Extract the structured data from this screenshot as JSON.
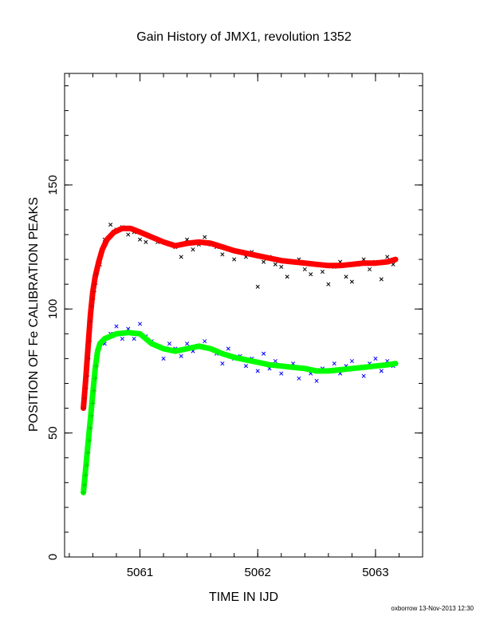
{
  "chart_data": {
    "type": "scatter",
    "title": "Gain History of JMX1, revolution 1352",
    "xlabel": "TIME IN IJD",
    "ylabel": "POSITION OF Fe CALIBRATION PEAKS",
    "footer": "oxborrow 13-Nov-2013 12:30",
    "xlim": [
      5060.36,
      5063.4
    ],
    "ylim": [
      0,
      195
    ],
    "x_ticks": [
      5061,
      5062,
      5063
    ],
    "y_ticks": [
      0,
      50,
      100,
      150
    ],
    "grid": false,
    "legend": "none",
    "series": [
      {
        "marker": "x",
        "color": "#000000",
        "points": [
          [
            5060.66,
            118
          ],
          [
            5060.7,
            128
          ],
          [
            5060.75,
            134
          ],
          [
            5060.8,
            132
          ],
          [
            5060.85,
            133
          ],
          [
            5060.9,
            130
          ],
          [
            5060.95,
            131
          ],
          [
            5061.0,
            128
          ],
          [
            5061.05,
            127
          ],
          [
            5061.1,
            129
          ],
          [
            5061.15,
            127
          ],
          [
            5061.2,
            127
          ],
          [
            5061.25,
            126
          ],
          [
            5061.3,
            125
          ],
          [
            5061.35,
            121
          ],
          [
            5061.4,
            128
          ],
          [
            5061.45,
            124
          ],
          [
            5061.5,
            126
          ],
          [
            5061.55,
            129
          ],
          [
            5061.6,
            126
          ],
          [
            5061.65,
            125
          ],
          [
            5061.7,
            122
          ],
          [
            5061.75,
            124
          ],
          [
            5061.8,
            120
          ],
          [
            5061.85,
            123
          ],
          [
            5061.9,
            121
          ],
          [
            5061.95,
            123
          ],
          [
            5062.0,
            109
          ],
          [
            5062.05,
            119
          ],
          [
            5062.1,
            121
          ],
          [
            5062.15,
            118
          ],
          [
            5062.2,
            117
          ],
          [
            5062.25,
            113
          ],
          [
            5062.3,
            119
          ],
          [
            5062.35,
            120
          ],
          [
            5062.4,
            116
          ],
          [
            5062.45,
            114
          ],
          [
            5062.5,
            118
          ],
          [
            5062.55,
            115
          ],
          [
            5062.6,
            110
          ],
          [
            5062.65,
            117
          ],
          [
            5062.7,
            119
          ],
          [
            5062.75,
            113
          ],
          [
            5062.8,
            111
          ],
          [
            5062.85,
            118
          ],
          [
            5062.9,
            120
          ],
          [
            5062.95,
            116
          ],
          [
            5063.0,
            119
          ],
          [
            5063.05,
            112
          ],
          [
            5063.1,
            121
          ],
          [
            5063.15,
            118
          ]
        ]
      },
      {
        "marker": "x",
        "color": "#0000ff",
        "points": [
          [
            5060.7,
            86
          ],
          [
            5060.75,
            90
          ],
          [
            5060.8,
            93
          ],
          [
            5060.85,
            88
          ],
          [
            5060.9,
            92
          ],
          [
            5060.95,
            88
          ],
          [
            5061.0,
            94
          ],
          [
            5061.05,
            89
          ],
          [
            5061.1,
            87
          ],
          [
            5061.15,
            85
          ],
          [
            5061.2,
            80
          ],
          [
            5061.25,
            86
          ],
          [
            5061.3,
            84
          ],
          [
            5061.35,
            81
          ],
          [
            5061.4,
            86
          ],
          [
            5061.45,
            83
          ],
          [
            5061.5,
            85
          ],
          [
            5061.55,
            87
          ],
          [
            5061.6,
            84
          ],
          [
            5061.65,
            82
          ],
          [
            5061.7,
            78
          ],
          [
            5061.75,
            84
          ],
          [
            5061.8,
            80
          ],
          [
            5061.85,
            81
          ],
          [
            5061.9,
            77
          ],
          [
            5061.95,
            80
          ],
          [
            5062.0,
            75
          ],
          [
            5062.05,
            82
          ],
          [
            5062.1,
            76
          ],
          [
            5062.15,
            79
          ],
          [
            5062.2,
            74
          ],
          [
            5062.25,
            77
          ],
          [
            5062.3,
            78
          ],
          [
            5062.35,
            72
          ],
          [
            5062.4,
            76
          ],
          [
            5062.45,
            74
          ],
          [
            5062.5,
            71
          ],
          [
            5062.55,
            76
          ],
          [
            5062.6,
            75
          ],
          [
            5062.65,
            78
          ],
          [
            5062.7,
            74
          ],
          [
            5062.75,
            77
          ],
          [
            5062.8,
            79
          ],
          [
            5062.85,
            76
          ],
          [
            5062.9,
            73
          ],
          [
            5062.95,
            78
          ],
          [
            5063.0,
            80
          ],
          [
            5063.05,
            75
          ],
          [
            5063.1,
            79
          ],
          [
            5063.15,
            77
          ]
        ]
      },
      {
        "marker": "line",
        "color": "#ff0000",
        "points": [
          [
            5060.52,
            60
          ],
          [
            5060.54,
            72
          ],
          [
            5060.56,
            85
          ],
          [
            5060.58,
            98
          ],
          [
            5060.6,
            107
          ],
          [
            5060.62,
            113
          ],
          [
            5060.65,
            119
          ],
          [
            5060.68,
            124
          ],
          [
            5060.72,
            128
          ],
          [
            5060.78,
            131
          ],
          [
            5060.85,
            132.5
          ],
          [
            5060.92,
            132.5
          ],
          [
            5061.0,
            131
          ],
          [
            5061.1,
            129
          ],
          [
            5061.2,
            127
          ],
          [
            5061.3,
            125.5
          ],
          [
            5061.4,
            126.5
          ],
          [
            5061.5,
            127
          ],
          [
            5061.6,
            126.5
          ],
          [
            5061.7,
            125
          ],
          [
            5061.8,
            123.5
          ],
          [
            5061.9,
            122.5
          ],
          [
            5062.0,
            121.5
          ],
          [
            5062.1,
            120.5
          ],
          [
            5062.2,
            119.5
          ],
          [
            5062.3,
            119
          ],
          [
            5062.4,
            118.5
          ],
          [
            5062.5,
            118
          ],
          [
            5062.6,
            117.5
          ],
          [
            5062.7,
            117.5
          ],
          [
            5062.8,
            118
          ],
          [
            5062.9,
            118.5
          ],
          [
            5063.0,
            118.5
          ],
          [
            5063.1,
            119
          ],
          [
            5063.17,
            120
          ]
        ]
      },
      {
        "marker": "line",
        "color": "#00ff00",
        "points": [
          [
            5060.52,
            26
          ],
          [
            5060.54,
            36
          ],
          [
            5060.56,
            46
          ],
          [
            5060.58,
            56
          ],
          [
            5060.6,
            66
          ],
          [
            5060.62,
            76
          ],
          [
            5060.64,
            83
          ],
          [
            5060.66,
            86
          ],
          [
            5060.7,
            88
          ],
          [
            5060.75,
            89
          ],
          [
            5060.8,
            90
          ],
          [
            5060.9,
            90.5
          ],
          [
            5061.0,
            90
          ],
          [
            5061.05,
            88
          ],
          [
            5061.1,
            86
          ],
          [
            5061.2,
            84
          ],
          [
            5061.3,
            83
          ],
          [
            5061.4,
            84
          ],
          [
            5061.5,
            85
          ],
          [
            5061.6,
            84
          ],
          [
            5061.7,
            82
          ],
          [
            5061.8,
            80.5
          ],
          [
            5061.9,
            79.5
          ],
          [
            5062.0,
            78.5
          ],
          [
            5062.1,
            77.5
          ],
          [
            5062.2,
            77
          ],
          [
            5062.3,
            76.5
          ],
          [
            5062.4,
            76
          ],
          [
            5062.5,
            75
          ],
          [
            5062.6,
            75
          ],
          [
            5062.7,
            75.5
          ],
          [
            5062.8,
            76
          ],
          [
            5062.9,
            76.5
          ],
          [
            5063.0,
            77
          ],
          [
            5063.1,
            77.5
          ],
          [
            5063.17,
            78
          ]
        ]
      },
      {
        "marker": "+",
        "color": "#cc0000",
        "points": [
          [
            5060.52,
            60
          ],
          [
            5060.53,
            64
          ],
          [
            5060.54,
            68
          ],
          [
            5060.55,
            73
          ],
          [
            5060.56,
            80
          ],
          [
            5060.57,
            87
          ],
          [
            5060.58,
            95
          ],
          [
            5060.59,
            101
          ],
          [
            5060.6,
            104
          ],
          [
            5060.61,
            107
          ],
          [
            5060.62,
            110
          ],
          [
            5060.63,
            114
          ]
        ]
      },
      {
        "marker": "+",
        "color": "#00cc00",
        "points": [
          [
            5060.52,
            26
          ],
          [
            5060.53,
            29
          ],
          [
            5060.54,
            33
          ],
          [
            5060.55,
            37
          ],
          [
            5060.56,
            42
          ],
          [
            5060.57,
            47
          ],
          [
            5060.58,
            52
          ],
          [
            5060.59,
            57
          ],
          [
            5060.6,
            62
          ],
          [
            5060.61,
            67
          ],
          [
            5060.62,
            72
          ],
          [
            5060.63,
            77
          ]
        ]
      }
    ]
  }
}
